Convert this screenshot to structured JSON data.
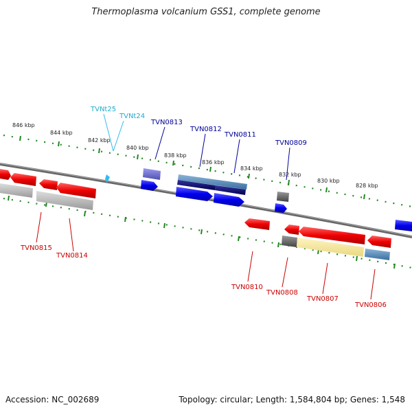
{
  "title": "Thermoplasma volcanium GSS1, complete genome",
  "footer": {
    "accession": "Accession: NC_002689",
    "summary": "Topology: circular; Length: 1,584,804 bp; Genes: 1,548"
  },
  "colors": {
    "forward_cds": "#1010ee",
    "reverse_cds": "#ee1010",
    "rna": "#33bbee",
    "pseudo": "#999999",
    "backbone": "#777777",
    "ticks": "#228822",
    "forward_label": "#000099",
    "reverse_label": "#cc0000",
    "rna_label": "#22aacc"
  },
  "scale_labels": [
    "846 kbp",
    "844 kbp",
    "842 kbp",
    "840 kbp",
    "838 kbp",
    "836 kbp",
    "834 kbp",
    "832 kbp",
    "830 kbp",
    "828 kbp"
  ],
  "gene_labels": [
    {
      "id": "tvnt25",
      "text": "TVNt25",
      "type": "rna"
    },
    {
      "id": "tvnt24",
      "text": "TVNt24",
      "type": "rna"
    },
    {
      "id": "tvn0813",
      "text": "TVN0813",
      "type": "forward"
    },
    {
      "id": "tvn0812",
      "text": "TVN0812",
      "type": "forward"
    },
    {
      "id": "tvn0811",
      "text": "TVN0811",
      "type": "forward"
    },
    {
      "id": "tvn0809",
      "text": "TVN0809",
      "type": "forward"
    },
    {
      "id": "tvn0815",
      "text": "TVN0815",
      "type": "reverse"
    },
    {
      "id": "tvn0814",
      "text": "TVN0814",
      "type": "reverse"
    },
    {
      "id": "tvn0810",
      "text": "TVN0810",
      "type": "reverse"
    },
    {
      "id": "tvn0808",
      "text": "TVN0808",
      "type": "reverse"
    },
    {
      "id": "tvn0807",
      "text": "TVN0807",
      "type": "reverse"
    },
    {
      "id": "tvn0806",
      "text": "TVN0806",
      "type": "reverse"
    }
  ]
}
